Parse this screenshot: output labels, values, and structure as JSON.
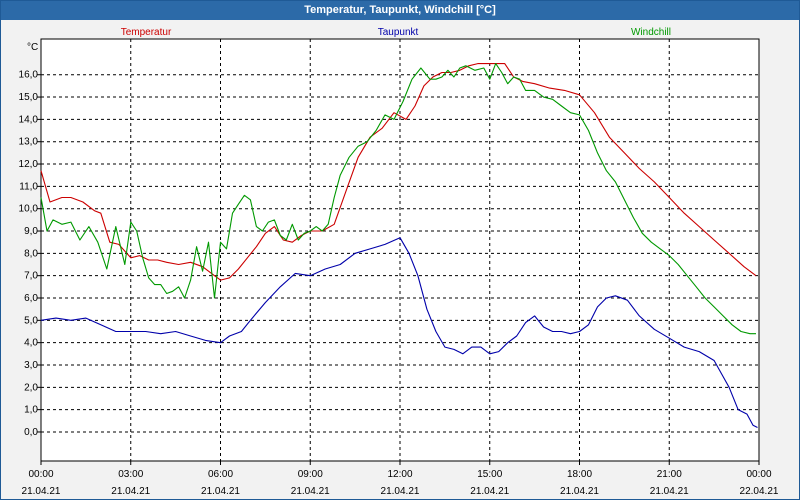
{
  "window": {
    "title": "Temperatur, Taupunkt, Windchill [°C]"
  },
  "chart_data": {
    "type": "line",
    "title": "Temperatur, Taupunkt, Windchill [°C]",
    "ylabel": "°C",
    "ylim": [
      -1.3,
      17.6
    ],
    "xlim": [
      0,
      24
    ],
    "grid": true,
    "y_ticks": [
      "0,0",
      "1,0",
      "2,0",
      "3,0",
      "4,0",
      "5,0",
      "6,0",
      "7,0",
      "8,0",
      "9,0",
      "10,0",
      "11,0",
      "12,0",
      "13,0",
      "14,0",
      "15,0",
      "16,0"
    ],
    "x_ticks": [
      {
        "time": "00:00",
        "date": "21.04.21"
      },
      {
        "time": "03:00",
        "date": "21.04.21"
      },
      {
        "time": "06:00",
        "date": "21.04.21"
      },
      {
        "time": "09:00",
        "date": "21.04.21"
      },
      {
        "time": "12:00",
        "date": "21.04.21"
      },
      {
        "time": "15:00",
        "date": "21.04.21"
      },
      {
        "time": "18:00",
        "date": "21.04.21"
      },
      {
        "time": "21:00",
        "date": "21.04.21"
      },
      {
        "time": "00:00",
        "date": "22.04.21"
      }
    ],
    "series": [
      {
        "name": "Temperatur",
        "color": "#cc0000",
        "x": [
          0,
          0.3,
          0.7,
          1,
          1.4,
          1.8,
          2,
          2.3,
          2.6,
          3,
          3.3,
          3.6,
          3.9,
          4.2,
          4.6,
          5,
          5.4,
          5.8,
          6,
          6.3,
          6.6,
          6.9,
          7.2,
          7.5,
          7.8,
          8.1,
          8.4,
          8.7,
          9,
          9.4,
          9.8,
          10.2,
          10.6,
          11,
          11.4,
          11.8,
          12.2,
          12.5,
          12.8,
          13.1,
          13.4,
          13.7,
          14,
          14.3,
          14.6,
          14.9,
          15.2,
          15.5,
          15.8,
          16.1,
          16.5,
          17,
          17.5,
          18,
          18.5,
          19,
          19.5,
          20,
          20.5,
          21,
          21.5,
          22,
          22.5,
          23,
          23.5,
          23.9
        ],
        "values": [
          11.7,
          10.3,
          10.5,
          10.5,
          10.3,
          9.9,
          9.8,
          8.5,
          8.4,
          7.8,
          7.9,
          7.7,
          7.7,
          7.6,
          7.5,
          7.6,
          7.4,
          7.0,
          6.8,
          6.9,
          7.3,
          7.8,
          8.3,
          8.9,
          9.2,
          8.6,
          8.5,
          8.8,
          9.0,
          9.0,
          9.3,
          10.8,
          12.3,
          13.2,
          13.6,
          14.3,
          14.0,
          14.6,
          15.5,
          15.9,
          16.1,
          16.1,
          16.2,
          16.4,
          16.5,
          16.5,
          16.5,
          16.5,
          15.9,
          15.7,
          15.6,
          15.4,
          15.3,
          15.1,
          14.3,
          13.2,
          12.5,
          11.8,
          11.2,
          10.5,
          9.8,
          9.2,
          8.6,
          8.0,
          7.4,
          7.0
        ]
      },
      {
        "name": "Taupunkt",
        "color": "#0000aa",
        "x": [
          0,
          0.5,
          1,
          1.5,
          2,
          2.5,
          3,
          3.5,
          4,
          4.5,
          5,
          5.5,
          6,
          6.3,
          6.7,
          7,
          7.5,
          8,
          8.5,
          9,
          9.5,
          10,
          10.5,
          11,
          11.5,
          12,
          12.3,
          12.6,
          12.9,
          13.2,
          13.5,
          13.8,
          14.1,
          14.4,
          14.7,
          15,
          15.3,
          15.6,
          15.9,
          16.2,
          16.5,
          16.8,
          17.1,
          17.4,
          17.7,
          18,
          18.3,
          18.6,
          18.9,
          19.2,
          19.6,
          20,
          20.5,
          21,
          21.5,
          22,
          22.5,
          23,
          23.3,
          23.6,
          23.8,
          23.95
        ],
        "values": [
          5.0,
          5.1,
          5.0,
          5.1,
          4.8,
          4.5,
          4.5,
          4.5,
          4.4,
          4.5,
          4.3,
          4.1,
          4.0,
          4.3,
          4.5,
          5.0,
          5.8,
          6.5,
          7.1,
          7.0,
          7.3,
          7.5,
          8.0,
          8.2,
          8.4,
          8.7,
          8.0,
          7.0,
          5.5,
          4.5,
          3.8,
          3.7,
          3.5,
          3.8,
          3.8,
          3.5,
          3.6,
          4.0,
          4.3,
          4.9,
          5.2,
          4.7,
          4.5,
          4.5,
          4.4,
          4.5,
          4.8,
          5.6,
          6.0,
          6.1,
          5.9,
          5.2,
          4.6,
          4.2,
          3.8,
          3.6,
          3.2,
          2.0,
          1.0,
          0.8,
          0.3,
          0.2
        ]
      },
      {
        "name": "Windchill",
        "color": "#009900",
        "x": [
          0,
          0.2,
          0.4,
          0.7,
          1,
          1.3,
          1.6,
          1.9,
          2.2,
          2.5,
          2.8,
          3,
          3.2,
          3.4,
          3.6,
          3.8,
          4,
          4.2,
          4.4,
          4.6,
          4.8,
          5,
          5.2,
          5.4,
          5.6,
          5.8,
          6,
          6.2,
          6.4,
          6.6,
          6.8,
          7,
          7.2,
          7.4,
          7.6,
          7.8,
          8,
          8.2,
          8.4,
          8.6,
          8.8,
          9,
          9.2,
          9.4,
          9.6,
          9.8,
          10,
          10.3,
          10.6,
          10.9,
          11.2,
          11.5,
          11.8,
          12.1,
          12.4,
          12.7,
          13,
          13.2,
          13.4,
          13.6,
          13.8,
          14,
          14.2,
          14.5,
          14.8,
          15,
          15.2,
          15.4,
          15.6,
          15.8,
          16,
          16.2,
          16.5,
          16.8,
          17.1,
          17.4,
          17.7,
          18,
          18.3,
          18.6,
          18.9,
          19.2,
          19.5,
          19.8,
          20.1,
          20.4,
          20.7,
          21,
          21.3,
          21.6,
          21.9,
          22.2,
          22.5,
          22.8,
          23.1,
          23.4,
          23.7,
          23.9
        ],
        "values": [
          10.5,
          9.0,
          9.5,
          9.3,
          9.4,
          8.6,
          9.2,
          8.5,
          7.3,
          9.2,
          7.5,
          9.4,
          9.0,
          7.8,
          6.9,
          6.6,
          6.6,
          6.2,
          6.3,
          6.5,
          6.0,
          6.8,
          8.3,
          7.2,
          8.5,
          6.0,
          8.5,
          8.2,
          9.8,
          10.2,
          10.6,
          10.4,
          9.2,
          9.0,
          9.4,
          9.5,
          8.8,
          8.6,
          9.3,
          8.6,
          8.9,
          9.0,
          9.2,
          9.0,
          9.3,
          10.5,
          11.5,
          12.3,
          12.8,
          13.0,
          13.5,
          14.2,
          14.0,
          14.8,
          15.8,
          16.3,
          15.8,
          15.8,
          15.9,
          16.2,
          15.9,
          16.3,
          16.4,
          16.2,
          16.3,
          15.8,
          16.5,
          16.1,
          15.6,
          15.9,
          15.8,
          15.3,
          15.3,
          15.0,
          14.9,
          14.6,
          14.3,
          14.2,
          13.5,
          12.5,
          11.7,
          11.2,
          10.4,
          9.6,
          8.9,
          8.5,
          8.2,
          7.9,
          7.5,
          7.0,
          6.5,
          6.0,
          5.6,
          5.2,
          4.8,
          4.5,
          4.4,
          4.4
        ]
      }
    ]
  }
}
